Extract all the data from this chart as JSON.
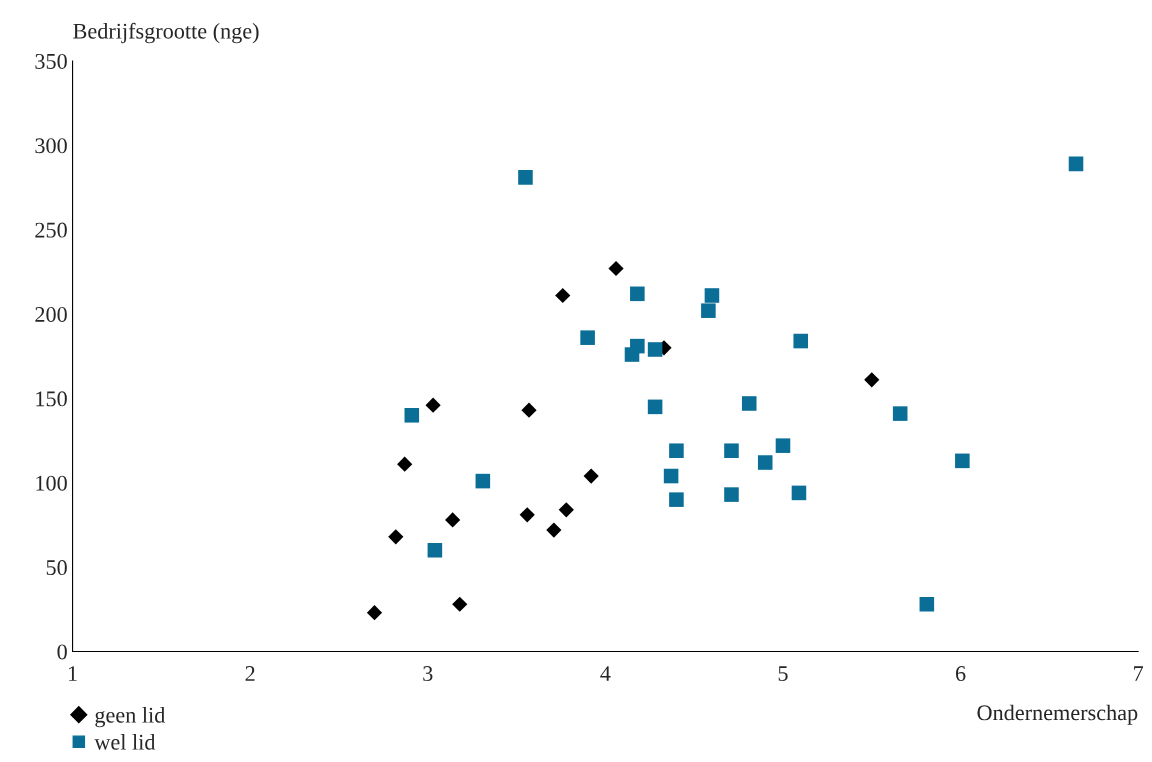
{
  "chart_data": {
    "type": "scatter",
    "xlabel": "Ondernemerschap",
    "ylabel": "Bedrijfsgrootte (nge)",
    "xlim": [
      1,
      7
    ],
    "xticks": [
      1,
      2,
      3,
      4,
      5,
      6,
      7
    ],
    "ylim": [
      0,
      350
    ],
    "yticks": [
      0,
      50,
      100,
      150,
      200,
      250,
      300,
      350
    ],
    "grid": false,
    "legend": "bottom left",
    "series": [
      {
        "name": "geen lid",
        "color": "#000000",
        "marker": "diamond",
        "x": [
          2.7,
          2.82,
          2.87,
          3.03,
          3.14,
          3.18,
          3.56,
          3.57,
          3.71,
          3.76,
          3.78,
          3.92,
          4.06,
          4.33,
          5.5
        ],
        "values": [
          23,
          68,
          111,
          146,
          78,
          28,
          81,
          143,
          72,
          211,
          84,
          104,
          227,
          180,
          161
        ]
      },
      {
        "name": "wel lid",
        "color": "#0a6e96",
        "marker": "square",
        "x": [
          3.55,
          2.91,
          3.04,
          3.31,
          3.9,
          4.18,
          4.18,
          4.15,
          4.28,
          4.28,
          4.4,
          4.37,
          4.4,
          4.58,
          4.6,
          4.71,
          4.71,
          4.81,
          4.9,
          5.0,
          5.09,
          5.1,
          5.66,
          5.81,
          6.01,
          6.65
        ],
        "values": [
          281,
          140,
          60,
          101,
          186,
          212,
          181,
          176,
          179,
          145,
          119,
          104,
          90,
          202,
          211,
          119,
          93,
          147,
          112,
          122,
          94,
          184,
          141,
          28,
          113,
          289
        ]
      }
    ]
  }
}
